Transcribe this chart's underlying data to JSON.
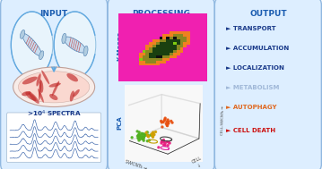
{
  "title_input": "INPUT",
  "title_processing": "PROCESSING",
  "title_output": "OUTPUT",
  "output_items": [
    {
      "text": "► TRANSPORT",
      "color": "#1a3a8a"
    },
    {
      "text": "► ACCUMULATION",
      "color": "#1a3a8a"
    },
    {
      "text": "► LOCALIZATION",
      "color": "#1a3a8a"
    },
    {
      "text": "► METABOLISM",
      "color": "#a0b8d8"
    },
    {
      "text": "► AUTOPHAGY",
      "color": "#e06820"
    },
    {
      "text": "► CELL DEATH",
      "color": "#cc1010"
    }
  ],
  "panel_bg": "#ddeeff",
  "panel_edge": "#90b8e0",
  "header_color": "#1a5cb0",
  "kmeans_colors": {
    "magenta": "#f020b0",
    "orange": "#f08020",
    "dark_green": "#1a4010",
    "olive": "#8a8820",
    "lime": "#80cc10",
    "black": "#101010"
  },
  "pca_colors": {
    "orange_cluster": "#e85010",
    "green_cluster": "#50b020",
    "yellow_cluster": "#d0a000",
    "pink_cluster": "#e82080"
  },
  "spectra_color": "#2050a0",
  "arrow_color": "#60a8e0",
  "circle_bg": "#e8f4fc"
}
